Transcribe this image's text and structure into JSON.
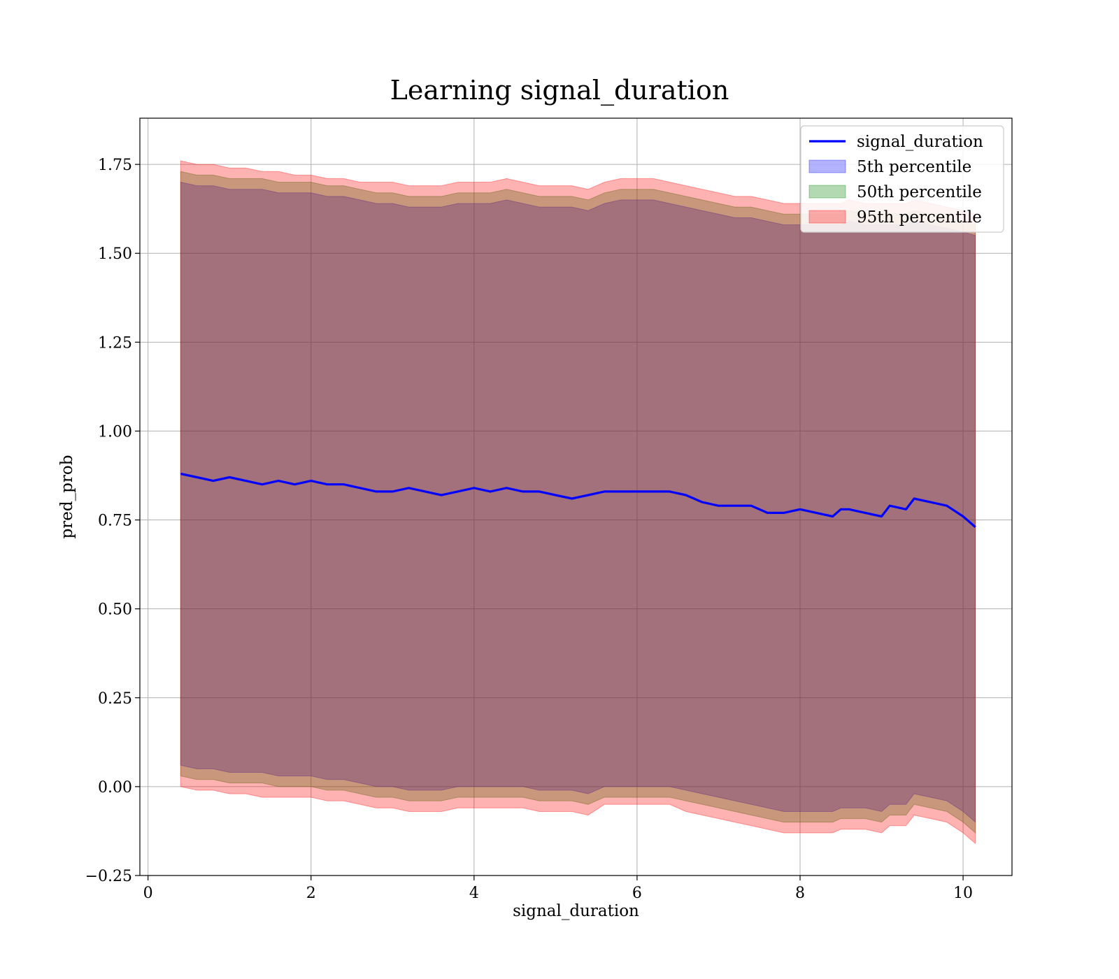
{
  "chart_data": {
    "type": "line",
    "title": "Learning signal_duration",
    "xlabel": "signal_duration",
    "ylabel": "pred_prob",
    "xlim": [
      -0.1,
      10.6
    ],
    "ylim": [
      -0.25,
      1.88
    ],
    "xticks": [
      0,
      2,
      4,
      6,
      8,
      10
    ],
    "xtick_labels": [
      "0",
      "2",
      "4",
      "6",
      "8",
      "10"
    ],
    "yticks": [
      -0.25,
      0.0,
      0.25,
      0.5,
      0.75,
      1.0,
      1.25,
      1.5,
      1.75
    ],
    "ytick_labels": [
      "−0.25",
      "0.00",
      "0.25",
      "0.50",
      "0.75",
      "1.00",
      "1.25",
      "1.50",
      "1.75"
    ],
    "grid": true,
    "legend_position": "top-right",
    "x": [
      0.4,
      0.6,
      0.8,
      1.0,
      1.2,
      1.4,
      1.6,
      1.8,
      2.0,
      2.2,
      2.4,
      2.6,
      2.8,
      3.0,
      3.2,
      3.4,
      3.6,
      3.8,
      4.0,
      4.2,
      4.4,
      4.6,
      4.8,
      5.0,
      5.2,
      5.4,
      5.6,
      5.8,
      6.0,
      6.2,
      6.4,
      6.6,
      6.8,
      7.0,
      7.2,
      7.4,
      7.6,
      7.8,
      8.0,
      8.2,
      8.4,
      8.5,
      8.6,
      8.8,
      9.0,
      9.1,
      9.3,
      9.4,
      9.6,
      9.8,
      10.0,
      10.15
    ],
    "series": [
      {
        "name": "signal_duration",
        "kind": "line",
        "color": "#0000ff",
        "values": [
          0.88,
          0.87,
          0.86,
          0.87,
          0.86,
          0.85,
          0.86,
          0.85,
          0.86,
          0.85,
          0.85,
          0.84,
          0.83,
          0.83,
          0.84,
          0.83,
          0.82,
          0.83,
          0.84,
          0.83,
          0.84,
          0.83,
          0.83,
          0.82,
          0.81,
          0.82,
          0.83,
          0.83,
          0.83,
          0.83,
          0.83,
          0.82,
          0.8,
          0.79,
          0.79,
          0.79,
          0.77,
          0.77,
          0.78,
          0.77,
          0.76,
          0.78,
          0.78,
          0.77,
          0.76,
          0.79,
          0.78,
          0.81,
          0.8,
          0.79,
          0.76,
          0.73
        ]
      },
      {
        "name": "5th percentile",
        "kind": "band",
        "color": "#0000ff",
        "upper": [
          1.7,
          1.69,
          1.69,
          1.68,
          1.68,
          1.68,
          1.67,
          1.67,
          1.67,
          1.66,
          1.66,
          1.65,
          1.64,
          1.64,
          1.63,
          1.63,
          1.63,
          1.64,
          1.64,
          1.64,
          1.65,
          1.64,
          1.63,
          1.63,
          1.63,
          1.62,
          1.64,
          1.65,
          1.65,
          1.65,
          1.64,
          1.63,
          1.62,
          1.61,
          1.6,
          1.6,
          1.59,
          1.58,
          1.58,
          1.58,
          1.58,
          1.58,
          1.59,
          1.58,
          1.58,
          1.58,
          1.58,
          1.59,
          1.58,
          1.57,
          1.56,
          1.55
        ],
        "lower": [
          0.06,
          0.05,
          0.05,
          0.04,
          0.04,
          0.04,
          0.03,
          0.03,
          0.03,
          0.02,
          0.02,
          0.01,
          0.0,
          0.0,
          -0.01,
          -0.01,
          -0.01,
          0.0,
          0.0,
          0.0,
          0.0,
          0.0,
          -0.01,
          -0.01,
          -0.01,
          -0.02,
          0.0,
          0.0,
          0.0,
          0.0,
          0.0,
          -0.01,
          -0.02,
          -0.03,
          -0.04,
          -0.05,
          -0.06,
          -0.07,
          -0.07,
          -0.07,
          -0.07,
          -0.06,
          -0.06,
          -0.06,
          -0.07,
          -0.05,
          -0.05,
          -0.02,
          -0.03,
          -0.04,
          -0.07,
          -0.1
        ]
      },
      {
        "name": "50th percentile",
        "kind": "band",
        "color": "#008000",
        "upper": [
          1.73,
          1.72,
          1.72,
          1.71,
          1.71,
          1.71,
          1.7,
          1.7,
          1.7,
          1.69,
          1.69,
          1.68,
          1.67,
          1.67,
          1.66,
          1.66,
          1.66,
          1.67,
          1.67,
          1.67,
          1.68,
          1.67,
          1.66,
          1.66,
          1.66,
          1.65,
          1.67,
          1.68,
          1.68,
          1.68,
          1.67,
          1.66,
          1.65,
          1.64,
          1.63,
          1.63,
          1.62,
          1.61,
          1.61,
          1.61,
          1.61,
          1.61,
          1.62,
          1.61,
          1.61,
          1.61,
          1.61,
          1.62,
          1.61,
          1.6,
          1.59,
          1.58
        ],
        "lower": [
          0.03,
          0.02,
          0.02,
          0.01,
          0.01,
          0.01,
          0.0,
          0.0,
          0.0,
          -0.01,
          -0.01,
          -0.02,
          -0.03,
          -0.03,
          -0.04,
          -0.04,
          -0.04,
          -0.03,
          -0.03,
          -0.03,
          -0.03,
          -0.03,
          -0.04,
          -0.04,
          -0.04,
          -0.05,
          -0.03,
          -0.03,
          -0.03,
          -0.03,
          -0.03,
          -0.04,
          -0.05,
          -0.06,
          -0.07,
          -0.08,
          -0.09,
          -0.1,
          -0.1,
          -0.1,
          -0.1,
          -0.09,
          -0.09,
          -0.09,
          -0.1,
          -0.08,
          -0.08,
          -0.05,
          -0.06,
          -0.07,
          -0.1,
          -0.13
        ]
      },
      {
        "name": "95th percentile",
        "kind": "band",
        "color": "#ff0000",
        "upper": [
          1.76,
          1.75,
          1.75,
          1.74,
          1.74,
          1.73,
          1.73,
          1.72,
          1.72,
          1.71,
          1.71,
          1.7,
          1.7,
          1.7,
          1.69,
          1.69,
          1.69,
          1.7,
          1.7,
          1.7,
          1.71,
          1.7,
          1.69,
          1.69,
          1.69,
          1.68,
          1.7,
          1.71,
          1.71,
          1.71,
          1.7,
          1.69,
          1.68,
          1.67,
          1.66,
          1.66,
          1.65,
          1.64,
          1.64,
          1.64,
          1.64,
          1.64,
          1.65,
          1.64,
          1.64,
          1.64,
          1.64,
          1.65,
          1.64,
          1.63,
          1.62,
          1.61
        ],
        "lower": [
          0.0,
          -0.01,
          -0.01,
          -0.02,
          -0.02,
          -0.03,
          -0.03,
          -0.03,
          -0.03,
          -0.04,
          -0.04,
          -0.05,
          -0.06,
          -0.06,
          -0.07,
          -0.07,
          -0.07,
          -0.06,
          -0.06,
          -0.06,
          -0.06,
          -0.06,
          -0.07,
          -0.07,
          -0.07,
          -0.08,
          -0.05,
          -0.05,
          -0.05,
          -0.05,
          -0.05,
          -0.07,
          -0.08,
          -0.09,
          -0.1,
          -0.11,
          -0.12,
          -0.13,
          -0.13,
          -0.13,
          -0.13,
          -0.12,
          -0.12,
          -0.12,
          -0.13,
          -0.11,
          -0.11,
          -0.08,
          -0.09,
          -0.1,
          -0.13,
          -0.16
        ]
      }
    ]
  }
}
